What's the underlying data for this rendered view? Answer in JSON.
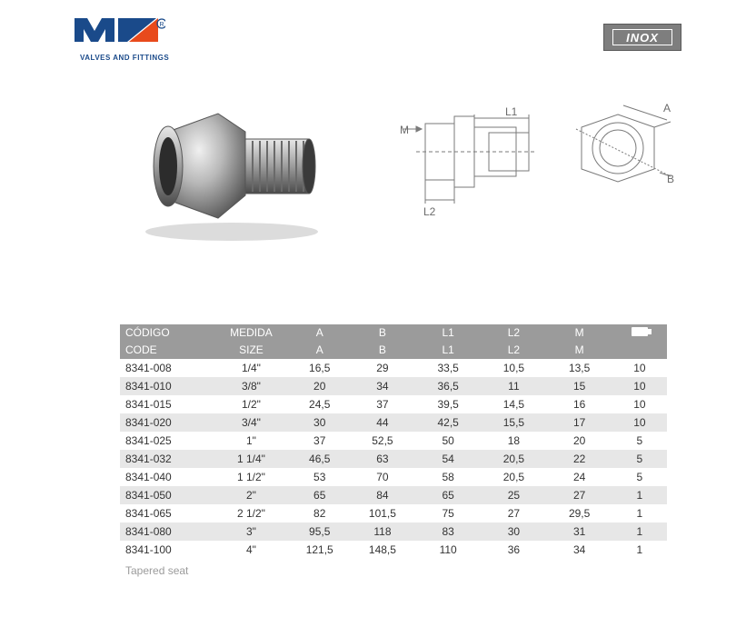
{
  "brand": {
    "tagline": "VALVES AND FITTINGS",
    "logo_primary": "#1a4a8a",
    "logo_accent": "#e84a1c"
  },
  "badge": {
    "text": "INOX",
    "bg": "#7e7e7e",
    "text_color": "#ffffff"
  },
  "drawing": {
    "labels": {
      "M": "M",
      "L1": "L1",
      "L2": "L2",
      "A": "A",
      "B": "B"
    }
  },
  "table": {
    "header": {
      "row1": [
        "CÓDIGO",
        "MEDIDA",
        "A",
        "B",
        "L1",
        "L2",
        "M",
        ""
      ],
      "row2": [
        "CODE",
        "SIZE",
        "A",
        "B",
        "L1",
        "L2",
        "M",
        ""
      ]
    },
    "col_widths": [
      "17%",
      "14%",
      "11%",
      "12%",
      "12%",
      "12%",
      "12%",
      "10%"
    ],
    "header_bg": "#9b9b9b",
    "header_fg": "#ffffff",
    "row_alt_bg": "#e7e7e7",
    "rows": [
      [
        "8341-008",
        "1/4\"",
        "16,5",
        "29",
        "33,5",
        "10,5",
        "13,5",
        "10"
      ],
      [
        "8341-010",
        "3/8\"",
        "20",
        "34",
        "36,5",
        "11",
        "15",
        "10"
      ],
      [
        "8341-015",
        "1/2\"",
        "24,5",
        "37",
        "39,5",
        "14,5",
        "16",
        "10"
      ],
      [
        "8341-020",
        "3/4\"",
        "30",
        "44",
        "42,5",
        "15,5",
        "17",
        "10"
      ],
      [
        "8341-025",
        "1\"",
        "37",
        "52,5",
        "50",
        "18",
        "20",
        "5"
      ],
      [
        "8341-032",
        "1 1/4\"",
        "46,5",
        "63",
        "54",
        "20,5",
        "22",
        "5"
      ],
      [
        "8341-040",
        "1 1/2\"",
        "53",
        "70",
        "58",
        "20,5",
        "24",
        "5"
      ],
      [
        "8341-050",
        "2\"",
        "65",
        "84",
        "65",
        "25",
        "27",
        "1"
      ],
      [
        "8341-065",
        "2 1/2\"",
        "82",
        "101,5",
        "75",
        "27",
        "29,5",
        "1"
      ],
      [
        "8341-080",
        "3\"",
        "95,5",
        "118",
        "83",
        "30",
        "31",
        "1"
      ],
      [
        "8341-100",
        "4\"",
        "121,5",
        "148,5",
        "110",
        "36",
        "34",
        "1"
      ]
    ]
  },
  "footer_note": "Tapered seat"
}
